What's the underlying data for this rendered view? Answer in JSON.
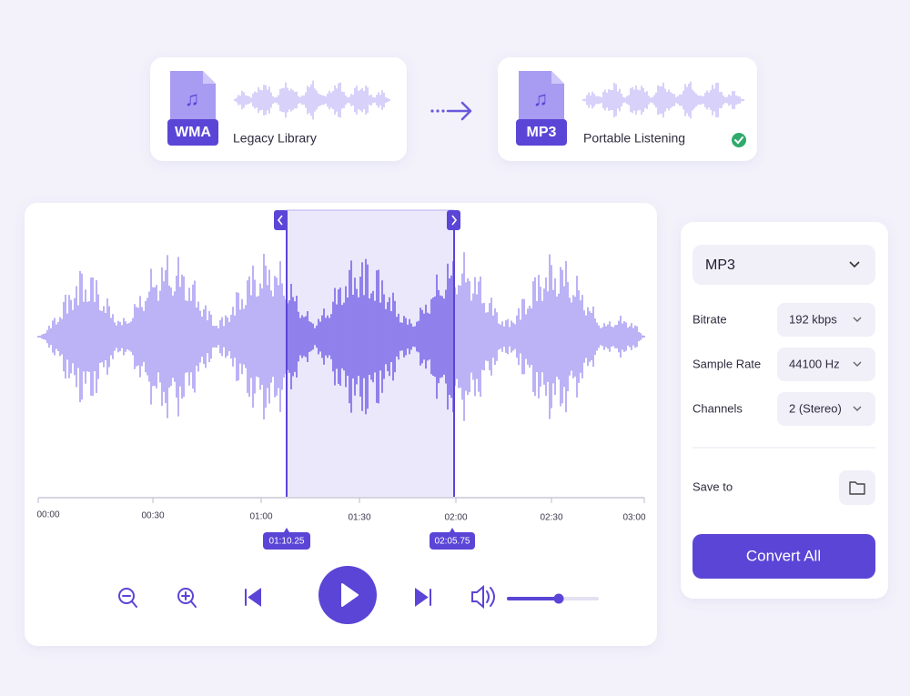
{
  "top_cards": [
    {
      "format": "WMA",
      "label": "Legacy Library"
    },
    {
      "format": "MP3",
      "label": "Portable Listening"
    }
  ],
  "timeline": {
    "ticks": [
      "00:00",
      "00:30",
      "01:00",
      "01:30",
      "02:00",
      "02:30",
      "03:00"
    ],
    "selection": [
      "01:10.25",
      "02:05.75"
    ]
  },
  "settings": {
    "format": "MP3",
    "rows": [
      {
        "label": "Bitrate",
        "value": "192 kbps"
      },
      {
        "label": "Sample Rate",
        "value": "44100 Hz"
      },
      {
        "label": "Channels",
        "value": "2 (Stereo)"
      }
    ],
    "save_label": "Save to",
    "button": "Convert All"
  }
}
